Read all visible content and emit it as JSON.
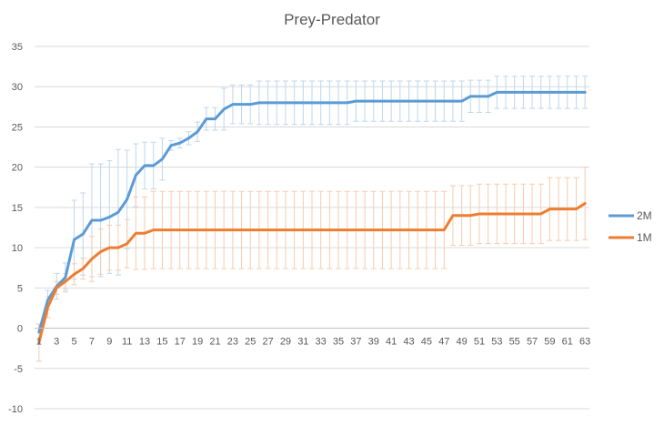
{
  "chart_data": {
    "type": "line",
    "title": "Prey-Predator",
    "xlabel": "",
    "ylabel": "",
    "ylim": [
      -10,
      35
    ],
    "yticks": [
      -10,
      -5,
      0,
      5,
      10,
      15,
      20,
      25,
      30,
      35
    ],
    "x": [
      1,
      2,
      3,
      4,
      5,
      6,
      7,
      8,
      9,
      10,
      11,
      12,
      13,
      14,
      15,
      16,
      17,
      18,
      19,
      20,
      21,
      22,
      23,
      24,
      25,
      26,
      27,
      28,
      29,
      30,
      31,
      32,
      33,
      34,
      35,
      36,
      37,
      38,
      39,
      40,
      41,
      42,
      43,
      44,
      45,
      46,
      47,
      48,
      49,
      50,
      51,
      52,
      53,
      54,
      55,
      56,
      57,
      58,
      59,
      60,
      61,
      62,
      63
    ],
    "xtick_labels": [
      "1",
      "3",
      "5",
      "7",
      "9",
      "11",
      "13",
      "15",
      "17",
      "19",
      "21",
      "23",
      "25",
      "27",
      "29",
      "31",
      "33",
      "35",
      "37",
      "39",
      "41",
      "43",
      "45",
      "47",
      "49",
      "51",
      "53",
      "55",
      "57",
      "59",
      "61",
      "63"
    ],
    "grid": true,
    "legend": "right",
    "series": [
      {
        "name": "2M",
        "color": "#5b9bd5",
        "values": [
          -0.5,
          3.5,
          5.2,
          6.3,
          11.0,
          11.7,
          13.4,
          13.4,
          13.8,
          14.4,
          16.0,
          19.0,
          20.2,
          20.2,
          21.0,
          22.7,
          23.0,
          23.6,
          24.4,
          26.0,
          26.0,
          27.2,
          27.8,
          27.8,
          27.8,
          28.0,
          28.0,
          28.0,
          28.0,
          28.0,
          28.0,
          28.0,
          28.0,
          28.0,
          28.0,
          28.0,
          28.2,
          28.2,
          28.2,
          28.2,
          28.2,
          28.2,
          28.2,
          28.2,
          28.2,
          28.2,
          28.2,
          28.2,
          28.2,
          28.8,
          28.8,
          28.8,
          29.3,
          29.3,
          29.3,
          29.3,
          29.3,
          29.3,
          29.3,
          29.3,
          29.3,
          29.3,
          29.3
        ],
        "errors": [
          1.0,
          1.2,
          1.6,
          1.8,
          4.9,
          5.1,
          7.0,
          7.0,
          7.0,
          7.8,
          6.1,
          3.9,
          2.9,
          2.9,
          2.6,
          0.6,
          0.6,
          0.8,
          1.2,
          1.4,
          1.4,
          2.6,
          2.4,
          2.4,
          2.4,
          2.7,
          2.7,
          2.7,
          2.7,
          2.7,
          2.7,
          2.7,
          2.7,
          2.7,
          2.7,
          2.7,
          2.5,
          2.5,
          2.5,
          2.5,
          2.5,
          2.5,
          2.5,
          2.5,
          2.5,
          2.5,
          2.5,
          2.5,
          2.5,
          2.0,
          2.0,
          2.0,
          2.0,
          2.0,
          2.0,
          2.0,
          2.0,
          2.0,
          2.0,
          2.0,
          2.0,
          2.0,
          2.0
        ]
      },
      {
        "name": "1M",
        "color": "#ed7d31",
        "values": [
          -1.8,
          2.6,
          5.0,
          5.8,
          6.7,
          7.4,
          8.6,
          9.5,
          10.0,
          10.0,
          10.5,
          11.8,
          11.8,
          12.2,
          12.2,
          12.2,
          12.2,
          12.2,
          12.2,
          12.2,
          12.2,
          12.2,
          12.2,
          12.2,
          12.2,
          12.2,
          12.2,
          12.2,
          12.2,
          12.2,
          12.2,
          12.2,
          12.2,
          12.2,
          12.2,
          12.2,
          12.2,
          12.2,
          12.2,
          12.2,
          12.2,
          12.2,
          12.2,
          12.2,
          12.2,
          12.2,
          12.2,
          14.0,
          14.0,
          14.0,
          14.2,
          14.2,
          14.2,
          14.2,
          14.2,
          14.2,
          14.2,
          14.2,
          14.8,
          14.8,
          14.8,
          14.8,
          15.5
        ],
        "errors": [
          2.3,
          1.3,
          0.8,
          1.0,
          1.3,
          1.3,
          2.8,
          2.8,
          2.8,
          2.8,
          3.0,
          4.5,
          4.5,
          4.8,
          4.8,
          4.8,
          4.8,
          4.8,
          4.8,
          4.8,
          4.8,
          4.8,
          4.8,
          4.8,
          4.8,
          4.8,
          4.8,
          4.8,
          4.8,
          4.8,
          4.8,
          4.8,
          4.8,
          4.8,
          4.8,
          4.8,
          4.8,
          4.8,
          4.8,
          4.8,
          4.8,
          4.8,
          4.8,
          4.8,
          4.8,
          4.8,
          4.8,
          3.7,
          3.7,
          3.7,
          3.7,
          3.7,
          3.7,
          3.7,
          3.7,
          3.7,
          3.7,
          3.7,
          3.9,
          3.9,
          3.9,
          3.9,
          4.5
        ]
      }
    ]
  }
}
